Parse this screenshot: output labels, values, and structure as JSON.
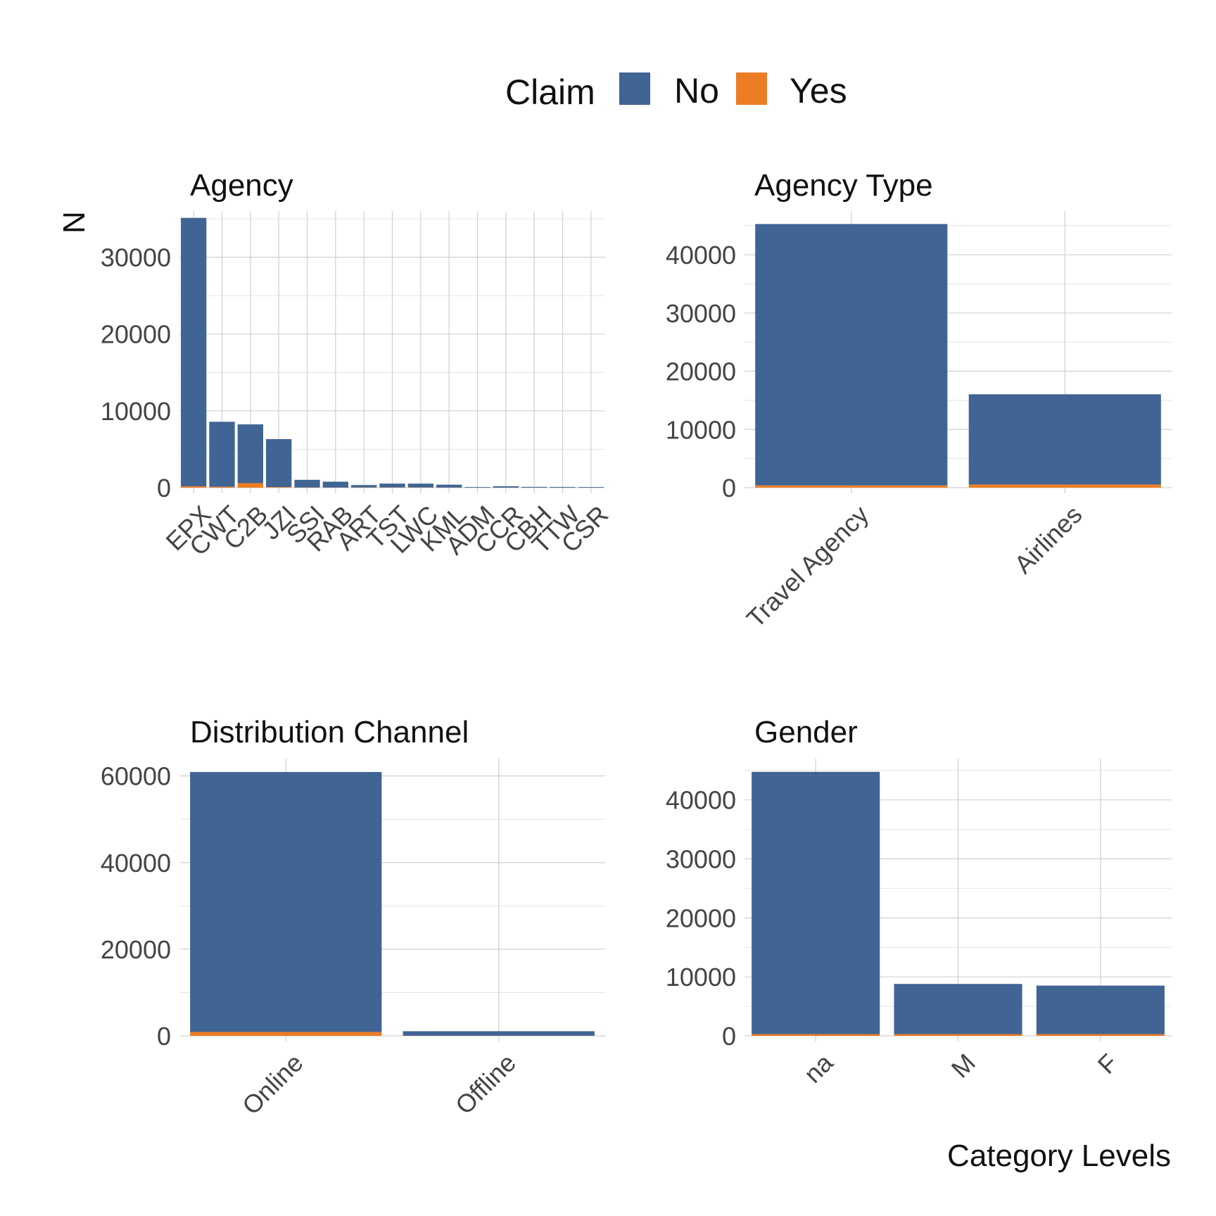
{
  "legend": {
    "title": "Claim",
    "items": [
      {
        "label": "No",
        "color": "#406494"
      },
      {
        "label": "Yes",
        "color": "#ED7D24"
      }
    ]
  },
  "ylabel": "N",
  "xlabel": "Category Levels",
  "chart_data": [
    {
      "type": "bar",
      "stacked": true,
      "title": "Agency",
      "categories": [
        "EPX",
        "CWT",
        "C2B",
        "JZI",
        "SSI",
        "RAB",
        "ART",
        "TST",
        "LWC",
        "KML",
        "ADM",
        "CCR",
        "CBH",
        "TTW",
        "CSR"
      ],
      "series": [
        {
          "name": "No",
          "values": [
            34940,
            8470,
            7650,
            6250,
            1000,
            770,
            320,
            510,
            510,
            380,
            80,
            180,
            100,
            90,
            80
          ]
        },
        {
          "name": "Yes",
          "values": [
            180,
            110,
            590,
            70,
            20,
            10,
            20,
            20,
            20,
            10,
            5,
            5,
            5,
            5,
            5
          ]
        }
      ],
      "ylim": [
        0,
        36000
      ],
      "yticks": [
        0,
        10000,
        20000,
        30000
      ],
      "grid": true
    },
    {
      "type": "bar",
      "stacked": true,
      "title": "Agency Type",
      "categories": [
        "Travel Agency",
        "Airlines"
      ],
      "series": [
        {
          "name": "No",
          "values": [
            44900,
            15500
          ]
        },
        {
          "name": "Yes",
          "values": [
            380,
            540
          ]
        }
      ],
      "ylim": [
        0,
        47500
      ],
      "yticks": [
        0,
        10000,
        20000,
        30000,
        40000
      ],
      "grid": true
    },
    {
      "type": "bar",
      "stacked": true,
      "title": "Distribution Channel",
      "categories": [
        "Online",
        "Offline"
      ],
      "series": [
        {
          "name": "No",
          "values": [
            60000,
            1050
          ]
        },
        {
          "name": "Yes",
          "values": [
            900,
            20
          ]
        }
      ],
      "ylim": [
        0,
        64000
      ],
      "yticks": [
        0,
        20000,
        40000,
        60000
      ],
      "grid": true
    },
    {
      "type": "bar",
      "stacked": true,
      "title": "Gender",
      "categories": [
        "na",
        "M",
        "F"
      ],
      "series": [
        {
          "name": "No",
          "values": [
            44450,
            8500,
            8220
          ]
        },
        {
          "name": "Yes",
          "values": [
            300,
            300,
            300
          ]
        }
      ],
      "ylim": [
        0,
        47000
      ],
      "yticks": [
        0,
        10000,
        20000,
        30000,
        40000
      ],
      "grid": true
    }
  ]
}
